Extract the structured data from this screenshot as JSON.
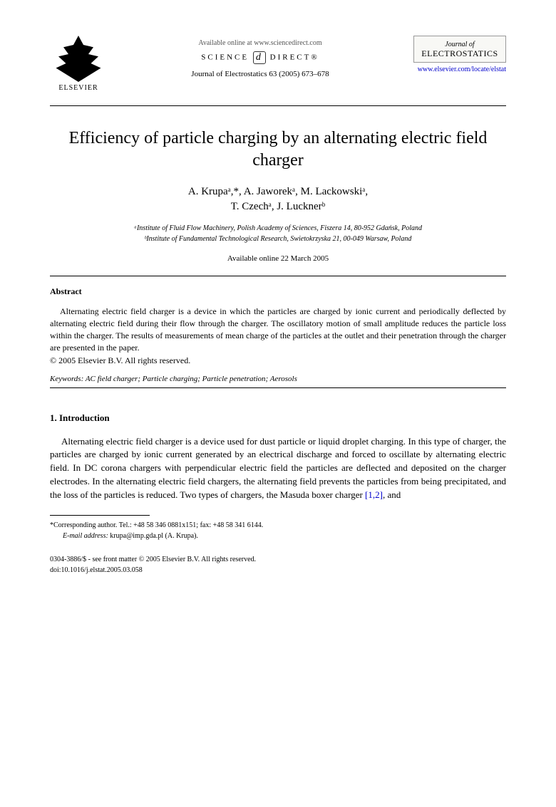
{
  "header": {
    "publisher_name": "ELSEVIER",
    "available_text": "Available online at www.sciencedirect.com",
    "science_direct_left": "SCIENCE",
    "science_direct_right": "DIRECT®",
    "sd_glyph": "d",
    "journal_reference": "Journal of Electrostatics 63 (2005) 673–678",
    "journal_box_top": "Journal of",
    "journal_box_title": "ELECTROSTATICS",
    "journal_url": "www.elsevier.com/locate/elstat"
  },
  "title": "Efficiency of particle charging by an alternating electric field charger",
  "authors_line1": "A. Krupaᵃ,*, A. Jaworekᵃ, M. Lackowskiᵃ,",
  "authors_line2": "T. Czechᵃ, J. Lucknerᵇ",
  "affiliation_a": "ᵃInstitute of Fluid Flow Machinery, Polish Academy of Sciences, Fiszera 14, 80-952 Gdańsk, Poland",
  "affiliation_b": "ᵇInstitute of Fundamental Technological Research, Swietokrzyska 21, 00-049 Warsaw, Poland",
  "online_date": "Available online 22 March 2005",
  "abstract": {
    "heading": "Abstract",
    "text": "Alternating electric field charger is a device in which the particles are charged by ionic current and periodically deflected by alternating electric field during their flow through the charger. The oscillatory motion of small amplitude reduces the particle loss within the charger. The results of measurements of mean charge of the particles at the outlet and their penetration through the charger are presented in the paper.",
    "copyright": "© 2005 Elsevier B.V. All rights reserved."
  },
  "keywords": {
    "label": "Keywords:",
    "text": " AC field charger; Particle charging; Particle penetration; Aerosols"
  },
  "section1": {
    "heading": "1.  Introduction",
    "text_before_cite": "Alternating electric field charger is a device used for dust particle or liquid droplet charging. In this type of charger, the particles are charged by ionic current generated by an electrical discharge and forced to oscillate by alternating electric field. In DC corona chargers with perpendicular electric field the particles are deflected and deposited on the charger electrodes. In the alternating electric field chargers, the alternating field prevents the particles from being precipitated, and the loss of the particles is reduced. Two types of chargers, the Masuda boxer charger ",
    "cite": "[1,2]",
    "text_after_cite": ", and"
  },
  "footnote": {
    "corresponding": "*Corresponding author. Tel.: +48 58 346 0881x151; fax: +48 58 341 6144.",
    "email_label": "E-mail address:",
    "email": " krupa@imp.gda.pl (A. Krupa)."
  },
  "bottom": {
    "issn_line": "0304-3886/$ - see front matter © 2005 Elsevier B.V. All rights reserved.",
    "doi_line": "doi:10.1016/j.elstat.2005.03.058"
  }
}
